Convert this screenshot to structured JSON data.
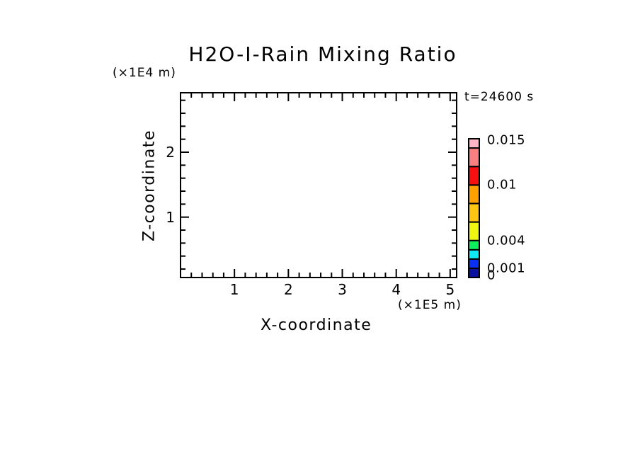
{
  "title": "H2O-I-Rain Mixing Ratio",
  "annotations": {
    "time_label": "t=24600 s",
    "y_axis_unit": "(×1E4 m)",
    "x_axis_unit": "(×1E5 m)"
  },
  "axes": {
    "x": {
      "label": "X-coordinate",
      "min": 0,
      "max": 5.12,
      "minor_step": 0.2,
      "major_ticks": [
        {
          "value": 1,
          "label": "1"
        },
        {
          "value": 2,
          "label": "2"
        },
        {
          "value": 3,
          "label": "3"
        },
        {
          "value": 4,
          "label": "4"
        },
        {
          "value": 5,
          "label": "5"
        }
      ]
    },
    "y": {
      "label": "Z-coordinate",
      "min": 0,
      "max": 2.9,
      "minor_step": 0.2,
      "major_ticks": [
        {
          "value": 1,
          "label": "1"
        },
        {
          "value": 2,
          "label": "2"
        }
      ]
    }
  },
  "colorbar": {
    "max_value": 0.015,
    "levels": [
      0,
      0.001,
      0.002,
      0.003,
      0.004,
      0.006,
      0.008,
      0.01,
      0.012,
      0.014,
      0.015
    ],
    "colors_bottom_to_top": [
      "#0A10A0",
      "#0A2FF5",
      "#0DE8F2",
      "#0DF25C",
      "#EFF710",
      "#FCC513",
      "#FFA200",
      "#F81010",
      "#F98080",
      "#FFB5C5"
    ],
    "labels": [
      {
        "text": "0.015",
        "value": 0.015,
        "dy": 2
      },
      {
        "text": "0.01",
        "value": 0.01,
        "dy": 0
      },
      {
        "text": "0.004",
        "value": 0.004,
        "dy": 0
      },
      {
        "text": "0.001",
        "value": 0.001,
        "dy": 0
      },
      {
        "text": "0",
        "value": 0,
        "dy": -3
      }
    ]
  },
  "chart_data": {
    "type": "heatmap",
    "title": "H2O-I-Rain Mixing Ratio",
    "xlabel": "X-coordinate",
    "xunit": "(×1E5 m)",
    "ylabel": "Z-coordinate",
    "yunit": "(×1E4 m)",
    "time_annotation": "t=24600 s",
    "xlim": [
      0,
      5.12
    ],
    "ylim": [
      0,
      2.9
    ],
    "x_major_ticks": [
      1,
      2,
      3,
      4,
      5
    ],
    "y_major_ticks": [
      1,
      2
    ],
    "contour_levels": [
      0,
      0.001,
      0.002,
      0.003,
      0.004,
      0.006,
      0.008,
      0.01,
      0.012,
      0.014,
      0.015
    ],
    "contour_colors_low_to_high": [
      "#0A10A0",
      "#0A2FF5",
      "#0DE8F2",
      "#0DF25C",
      "#EFF710",
      "#FCC513",
      "#FFA200",
      "#F81010",
      "#F98080",
      "#FFB5C5"
    ],
    "values": [],
    "note": "plot area contains no contour fill at this time step (field below lowest level)",
    "grid": false,
    "colorbar_position": "right"
  }
}
